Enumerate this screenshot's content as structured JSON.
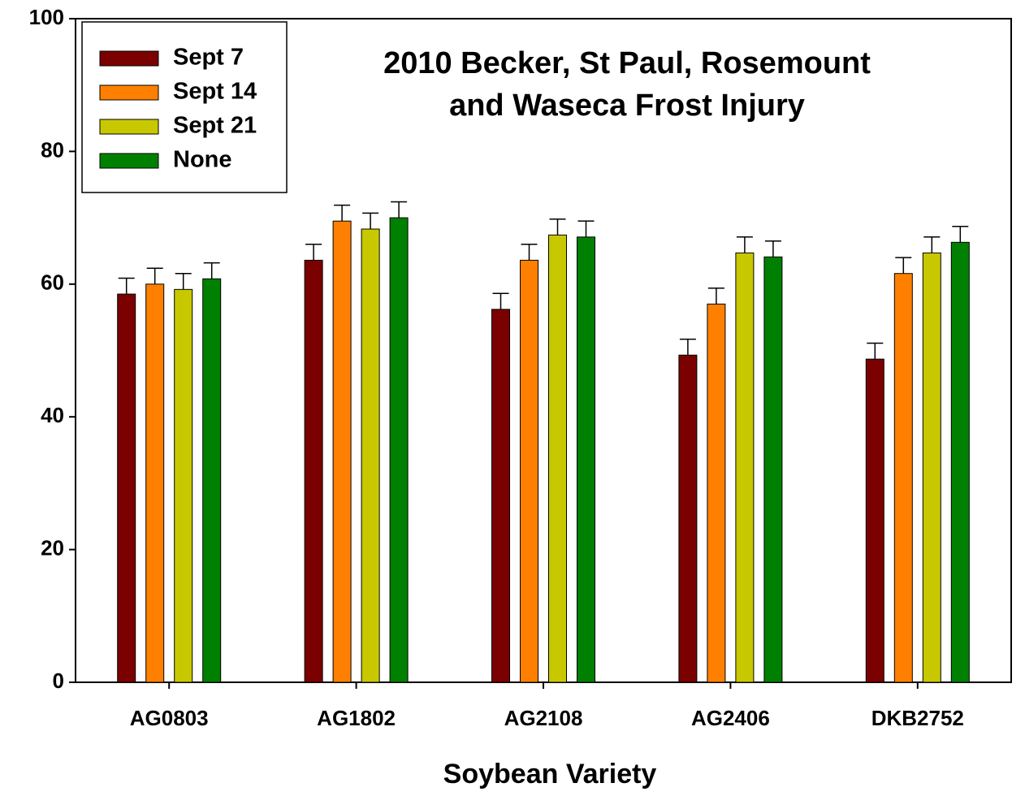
{
  "chart_data": {
    "type": "bar",
    "title": [
      "2010 Becker, St Paul, Rosemount",
      "and Waseca Frost Injury"
    ],
    "x_label": "Soybean Variety",
    "categories": [
      "AG0803",
      "AG1802",
      "AG2108",
      "AG2406",
      "DKB2752"
    ],
    "series": [
      {
        "name": "Sept 7",
        "color": "#7b0000",
        "values": [
          58.5,
          63.6,
          56.2,
          49.3,
          48.7
        ],
        "errors": [
          2.4,
          2.4,
          2.4,
          2.4,
          2.4
        ]
      },
      {
        "name": "Sept 14",
        "color": "#ff8000",
        "values": [
          60,
          69.5,
          63.6,
          57,
          61.6
        ],
        "errors": [
          2.4,
          2.4,
          2.4,
          2.4,
          2.4
        ]
      },
      {
        "name": "Sept 21",
        "color": "#c8c800",
        "values": [
          59.2,
          68.3,
          67.4,
          64.7,
          64.7
        ],
        "errors": [
          2.4,
          2.4,
          2.4,
          2.4,
          2.4
        ]
      },
      {
        "name": "None",
        "color": "#008000",
        "values": [
          60.8,
          70,
          67.1,
          64.1,
          66.3
        ],
        "errors": [
          2.4,
          2.4,
          2.4,
          2.4,
          2.4
        ]
      }
    ],
    "ylim": [
      0,
      100
    ],
    "yticks": [
      0,
      20,
      40,
      60,
      80,
      100
    ],
    "grid": false,
    "legend": "upper left"
  }
}
